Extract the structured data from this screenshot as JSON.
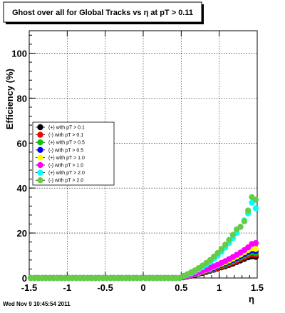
{
  "title": "Ghost over all for Global Tracks vs η at pT > 0.11",
  "timestamp": "Wed Nov  9 10:45:54 2011",
  "chart_data": {
    "type": "scatter",
    "title": "Ghost over all for Global Tracks vs η at pT > 0.11",
    "xlabel": "η",
    "ylabel": "Efficiency (%)",
    "xlim": [
      -1.5,
      1.5
    ],
    "ylim": [
      0,
      110
    ],
    "x_ticks": [
      -1.5,
      -1,
      -0.5,
      0,
      0.5,
      1,
      1.5
    ],
    "x_tick_labels": [
      "-1.5",
      "-1",
      "-0.5",
      "0",
      "0.5",
      "1",
      "1.5"
    ],
    "y_ticks": [
      0,
      20,
      40,
      60,
      80,
      100
    ],
    "y_tick_labels": [
      "0",
      "20",
      "40",
      "60",
      "80",
      "100"
    ],
    "grid": true,
    "legend_position": "middle-left",
    "x": [
      -1.48,
      -1.43,
      -1.38,
      -1.33,
      -1.28,
      -1.23,
      -1.18,
      -1.13,
      -1.08,
      -1.03,
      -0.98,
      -0.93,
      -0.88,
      -0.83,
      -0.78,
      -0.73,
      -0.68,
      -0.63,
      -0.58,
      -0.53,
      -0.48,
      -0.43,
      -0.38,
      -0.33,
      -0.28,
      -0.23,
      -0.18,
      -0.13,
      -0.08,
      -0.03,
      0.03,
      0.08,
      0.13,
      0.18,
      0.23,
      0.28,
      0.33,
      0.38,
      0.43,
      0.48,
      0.53,
      0.58,
      0.63,
      0.68,
      0.73,
      0.78,
      0.83,
      0.88,
      0.93,
      0.98,
      1.03,
      1.08,
      1.13,
      1.18,
      1.23,
      1.28,
      1.33,
      1.38,
      1.43,
      1.48
    ],
    "series": [
      {
        "name": "(+) with pT > 0.1",
        "color": "#000000",
        "values": [
          0,
          0,
          0,
          0,
          0,
          0,
          0,
          0,
          0,
          0,
          0,
          0,
          0,
          0,
          0,
          0,
          0,
          0,
          0,
          0,
          0,
          0,
          0,
          0,
          0,
          0,
          0,
          0,
          0,
          0,
          0,
          0,
          0,
          0,
          0,
          0,
          0,
          0,
          0,
          0,
          0.3,
          0.6,
          1.0,
          1.4,
          1.8,
          2.2,
          2.7,
          3.2,
          3.7,
          4.2,
          4.7,
          5.2,
          5.8,
          6.4,
          7.1,
          7.8,
          8.5,
          9.2,
          9.6,
          9.4
        ]
      },
      {
        "name": "(-) with pT > 0.1",
        "color": "#ff0000",
        "values": [
          0,
          0,
          0,
          0,
          0,
          0,
          0,
          0,
          0,
          0,
          0,
          0,
          0,
          0,
          0,
          0,
          0,
          0,
          0,
          0,
          0,
          0,
          0,
          0,
          0,
          0,
          0,
          0,
          0,
          0,
          0,
          0,
          0,
          0,
          0,
          0,
          0,
          0,
          0,
          0,
          0.4,
          0.7,
          1.1,
          1.5,
          1.9,
          2.4,
          2.9,
          3.4,
          3.9,
          4.5,
          5.0,
          5.6,
          6.2,
          6.9,
          7.6,
          8.4,
          9.2,
          10.0,
          10.6,
          10.3
        ]
      },
      {
        "name": "(+) with pT > 0.5",
        "color": "#00cc00",
        "values": [
          0,
          0,
          0,
          0,
          0,
          0,
          0,
          0,
          0,
          0,
          0,
          0,
          0,
          0,
          0,
          0,
          0,
          0,
          0,
          0,
          0,
          0,
          0,
          0,
          0,
          0,
          0,
          0,
          0,
          0,
          0,
          0,
          0,
          0,
          0,
          0,
          0,
          0,
          0,
          0,
          0.4,
          0.8,
          1.2,
          1.6,
          2.1,
          2.6,
          3.1,
          3.7,
          4.3,
          4.9,
          5.5,
          6.1,
          6.8,
          7.5,
          8.3,
          9.1,
          10.0,
          10.9,
          11.5,
          11.2
        ]
      },
      {
        "name": "(-) with pT > 0.5",
        "color": "#0000ff",
        "values": [
          0,
          0,
          0,
          0,
          0,
          0,
          0,
          0,
          0,
          0,
          0,
          0,
          0,
          0,
          0,
          0,
          0,
          0,
          0,
          0,
          0,
          0,
          0,
          0,
          0,
          0,
          0,
          0,
          0,
          0,
          0,
          0,
          0,
          0,
          0,
          0,
          0,
          0,
          0,
          0,
          0.4,
          0.8,
          1.3,
          1.7,
          2.2,
          2.7,
          3.3,
          3.9,
          4.5,
          5.1,
          5.8,
          6.5,
          7.2,
          8.0,
          8.8,
          9.7,
          10.6,
          11.6,
          12.3,
          12.0
        ]
      },
      {
        "name": "(+) with pT > 1.0",
        "color": "#ffff00",
        "values": [
          0,
          0,
          0,
          0,
          0,
          0,
          0,
          0,
          0,
          0,
          0,
          0,
          0,
          0,
          0,
          0,
          0,
          0,
          0,
          0,
          0,
          0,
          0,
          0,
          0,
          0,
          0,
          0,
          0,
          0,
          0,
          0,
          0,
          0,
          0,
          0,
          0,
          0,
          0,
          0,
          0.5,
          0.9,
          1.4,
          1.9,
          2.4,
          3.0,
          3.6,
          4.2,
          4.9,
          5.6,
          6.3,
          7.0,
          7.8,
          8.6,
          9.5,
          10.4,
          11.4,
          12.4,
          13.2,
          12.9
        ]
      },
      {
        "name": "(-) with pT > 1.0",
        "color": "#ff00ff",
        "values": [
          0,
          0,
          0,
          0,
          0,
          0,
          0,
          0,
          0,
          0,
          0,
          0,
          0,
          0,
          0,
          0,
          0,
          0,
          0,
          0,
          0,
          0,
          0,
          0,
          0,
          0,
          0,
          0,
          0,
          0,
          0,
          0,
          0,
          0,
          0,
          0,
          0,
          0,
          0,
          0,
          0.5,
          1.0,
          1.5,
          2.0,
          2.6,
          3.2,
          3.8,
          4.5,
          5.2,
          5.9,
          6.7,
          7.5,
          8.4,
          9.3,
          10.3,
          11.3,
          12.4,
          13.6,
          15.1,
          15.5
        ]
      },
      {
        "name": "(+) with pT > 2.0",
        "color": "#00ffff",
        "values": [
          0,
          0,
          0,
          0,
          0,
          0,
          0,
          0,
          0,
          0,
          0,
          0,
          0,
          0,
          0,
          0,
          0,
          0,
          0,
          0,
          0,
          0,
          0,
          0,
          0,
          0,
          0,
          0,
          0,
          0,
          0,
          0,
          0,
          0,
          0,
          0,
          0,
          0,
          0,
          0,
          0.8,
          1.4,
          2.1,
          2.9,
          3.8,
          4.8,
          5.9,
          7.1,
          8.5,
          10.0,
          11.7,
          13.5,
          15.5,
          17.7,
          20.1,
          22.7,
          25.6,
          28.7,
          33.5,
          31.0
        ]
      },
      {
        "name": "(-) with pT > 2.0",
        "color": "#66cc44",
        "values": [
          0,
          0,
          0,
          0,
          0,
          0,
          0,
          0,
          0,
          0,
          0,
          0,
          0,
          0,
          0,
          0,
          0,
          0,
          0,
          0,
          0,
          0,
          0,
          0,
          0,
          0,
          0,
          0,
          0,
          0,
          0,
          0,
          0,
          0,
          0,
          0,
          0,
          0,
          0,
          0,
          1.0,
          1.7,
          2.5,
          3.4,
          4.4,
          5.5,
          6.7,
          8.0,
          9.5,
          11.1,
          12.9,
          14.8,
          16.9,
          19.2,
          21.6,
          22.8,
          25.2,
          30.0,
          36.0,
          34.8
        ]
      }
    ]
  }
}
